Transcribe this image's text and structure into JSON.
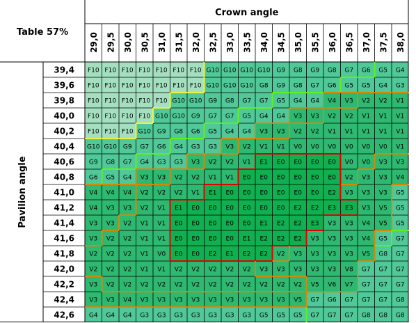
{
  "title": "Table 57%",
  "x_axis_title": "Crown angle",
  "y_axis_title": "Pavilion angle",
  "colors": {
    "F": "#a4e0c0",
    "G": "#50c898",
    "V": "#2eb870",
    "E": "#10b050",
    "grid": "#000000",
    "bad_boundary": "#d4880a",
    "good_boundary": "#e00000",
    "green_boundary": "#60f020",
    "yellow_boundary": "#f0f040"
  },
  "chart_data": {
    "type": "table",
    "title": "Table 57%",
    "xlabel": "Crown angle",
    "ylabel": "Pavilion angle",
    "columns": [
      "29,0",
      "29,5",
      "30,0",
      "30,5",
      "31,0",
      "31,5",
      "32,0",
      "32,5",
      "33,0",
      "33,5",
      "34,0",
      "34,5",
      "35,0",
      "35,5",
      "36,0",
      "36,5",
      "37,0",
      "37,5",
      "38,0"
    ],
    "rows": [
      "39,4",
      "39,6",
      "39,8",
      "40,0",
      "40,2",
      "40,4",
      "40,6",
      "40,8",
      "41,0",
      "41,2",
      "41,4",
      "41,6",
      "41,8",
      "42,0",
      "42,2",
      "42,4",
      "42,6"
    ],
    "cells": [
      [
        "F10",
        "F10",
        "F10",
        "F10",
        "F10",
        "F10",
        "F10",
        "G10",
        "G10",
        "G10",
        "G10",
        "G9",
        "G8",
        "G9",
        "G8",
        "G7",
        "G6",
        "G5",
        "G4"
      ],
      [
        "F10",
        "F10",
        "F10",
        "F10",
        "F10",
        "F10",
        "F10",
        "G10",
        "G10",
        "G10",
        "G8",
        "G9",
        "G8",
        "G7",
        "G6",
        "G5",
        "G5",
        "G4",
        "G3"
      ],
      [
        "F10",
        "F10",
        "F10",
        "F10",
        "F10",
        "G10",
        "G10",
        "G9",
        "G8",
        "G7",
        "G7",
        "G5",
        "G4",
        "G4",
        "V4",
        "V3",
        "V2",
        "V2",
        "V1"
      ],
      [
        "F10",
        "F10",
        "F10",
        "F10",
        "G10",
        "G10",
        "G9",
        "G7",
        "G7",
        "G5",
        "G4",
        "G4",
        "V3",
        "V3",
        "V2",
        "V2",
        "V1",
        "V1",
        "V1"
      ],
      [
        "F10",
        "F10",
        "F10",
        "G10",
        "G9",
        "G8",
        "G6",
        "G5",
        "G4",
        "G4",
        "V3",
        "V3",
        "V2",
        "V2",
        "V1",
        "V1",
        "V1",
        "V1",
        "V1"
      ],
      [
        "G10",
        "G10",
        "G9",
        "G7",
        "G6",
        "G4",
        "G3",
        "G3",
        "V3",
        "V2",
        "V1",
        "V1",
        "V0",
        "V0",
        "V0",
        "V0",
        "V0",
        "V0",
        "V1"
      ],
      [
        "G9",
        "G8",
        "G7",
        "G4",
        "G3",
        "G3",
        "V3",
        "V2",
        "V2",
        "V1",
        "E1",
        "E0",
        "E0",
        "E0",
        "E0",
        "V0",
        "V0",
        "V3",
        "V3"
      ],
      [
        "G6",
        "G5",
        "G4",
        "V3",
        "V3",
        "V2",
        "V2",
        "V1",
        "V1",
        "E0",
        "E0",
        "E0",
        "E0",
        "E0",
        "E0",
        "V2",
        "V3",
        "V3",
        "V4"
      ],
      [
        "V4",
        "V4",
        "V4",
        "V2",
        "V2",
        "V2",
        "V1",
        "E1",
        "E0",
        "E0",
        "E0",
        "E0",
        "E0",
        "E0",
        "E2",
        "V3",
        "V3",
        "V3",
        "G5"
      ],
      [
        "V4",
        "V3",
        "V3",
        "V2",
        "V1",
        "E1",
        "E0",
        "E0",
        "E0",
        "E0",
        "E0",
        "E0",
        "E2",
        "E2",
        "E3",
        "E3",
        "V3",
        "V5",
        "G5"
      ],
      [
        "V3",
        "V3",
        "V2",
        "V1",
        "V1",
        "E0",
        "E0",
        "E0",
        "E0",
        "E0",
        "E1",
        "E2",
        "E2",
        "E3",
        "V3",
        "V3",
        "V4",
        "V5",
        "G5"
      ],
      [
        "V3",
        "V2",
        "V2",
        "V1",
        "V1",
        "E0",
        "E0",
        "E0",
        "E0",
        "E1",
        "E2",
        "E2",
        "E2",
        "V3",
        "V3",
        "V3",
        "V4",
        "G5",
        "G7"
      ],
      [
        "V2",
        "V2",
        "V2",
        "V1",
        "V0",
        "E0",
        "E0",
        "E2",
        "E1",
        "E2",
        "E2",
        "V2",
        "V3",
        "V3",
        "V3",
        "V3",
        "V5",
        "G8",
        "G7"
      ],
      [
        "V2",
        "V2",
        "V2",
        "V1",
        "V1",
        "V2",
        "V2",
        "V2",
        "V2",
        "V2",
        "V3",
        "V3",
        "V3",
        "V3",
        "V3",
        "V8",
        "G7",
        "G7",
        "G7"
      ],
      [
        "V3",
        "V2",
        "V2",
        "V2",
        "V2",
        "V2",
        "V2",
        "V2",
        "V2",
        "V2",
        "V2",
        "V2",
        "V2",
        "V5",
        "V6",
        "V7",
        "G7",
        "G7",
        "G7"
      ],
      [
        "V3",
        "V3",
        "V4",
        "V3",
        "V3",
        "V3",
        "V3",
        "V3",
        "V3",
        "V3",
        "V3",
        "V3",
        "V5",
        "G7",
        "G6",
        "G7",
        "G7",
        "G7",
        "G8"
      ],
      [
        "G4",
        "G4",
        "G4",
        "G3",
        "G3",
        "G3",
        "G3",
        "G3",
        "G3",
        "G3",
        "G5",
        "G5",
        "G5",
        "G7",
        "G7",
        "G7",
        "G8",
        "G8",
        "G8"
      ]
    ]
  }
}
